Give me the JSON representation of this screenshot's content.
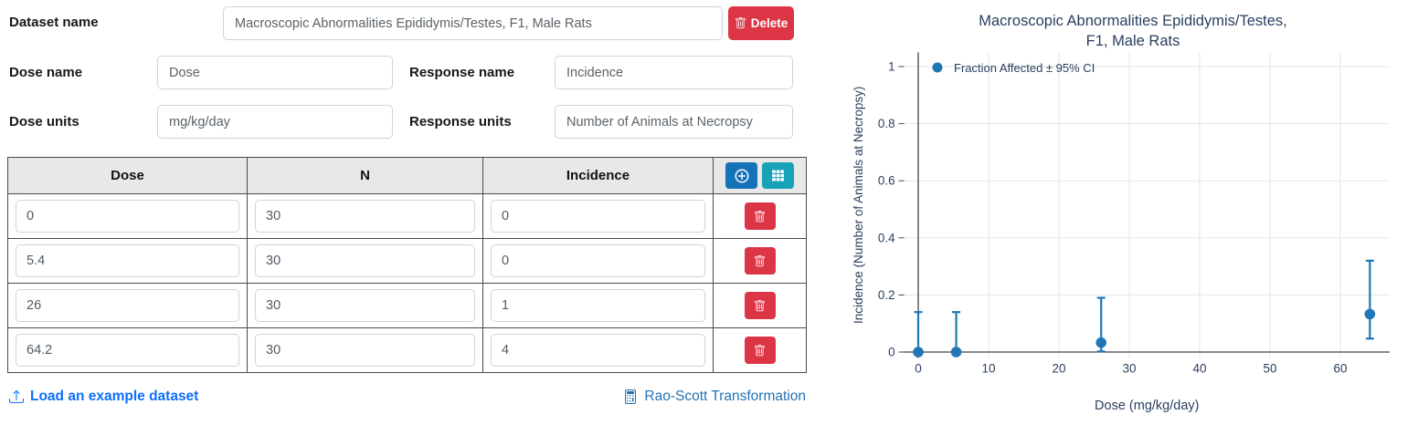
{
  "form": {
    "dataset_name": {
      "label": "Dataset name",
      "value": "Macroscopic Abnormalities Epididymis/Testes, F1, Male Rats"
    },
    "delete_button": "Delete",
    "dose_name": {
      "label": "Dose name",
      "value": "Dose"
    },
    "response_name": {
      "label": "Response name",
      "value": "Incidence"
    },
    "dose_units": {
      "label": "Dose units",
      "value": "mg/kg/day"
    },
    "response_units": {
      "label": "Response units",
      "value": "Number of Animals at Necropsy"
    }
  },
  "table": {
    "headers": [
      "Dose",
      "N",
      "Incidence"
    ],
    "rows": [
      {
        "dose": "0",
        "n": "30",
        "incidence": "0"
      },
      {
        "dose": "5.4",
        "n": "30",
        "incidence": "0"
      },
      {
        "dose": "26",
        "n": "30",
        "incidence": "1"
      },
      {
        "dose": "64.2",
        "n": "30",
        "incidence": "4"
      }
    ]
  },
  "footer": {
    "load_example": "Load an example dataset",
    "rao_scott": "Rao-Scott Transformation"
  },
  "icons": {
    "delete": "trash-icon",
    "add_row": "plus-circle-icon",
    "bulk_grid": "table-grid-icon",
    "load_example": "upload-icon",
    "rao_scott": "calculator-icon"
  },
  "colors": {
    "delete_red": "#dc3545",
    "add_blue": "#1572b6",
    "grid_teal": "#17a2b8",
    "load_link_blue": "#0d6efd",
    "rao_link_blue": "#2272b4",
    "marker_blue": "#1f77b4",
    "grid_line": "#e5e5e5",
    "zero_line": "#444444",
    "chart_text": "#2a3f5f"
  },
  "chart_data": {
    "type": "scatter",
    "title_lines": [
      "Macroscopic Abnormalities Epididymis/Testes,",
      "F1, Male Rats"
    ],
    "xlabel": "Dose (mg/kg/day)",
    "ylabel": "Incidence (Number of Animals at Necropsy)",
    "legend": "Fraction Affected ± 95% CI",
    "legend_position": "top-left",
    "grid": true,
    "xlim": [
      -2,
      67
    ],
    "ylim": [
      -0.02,
      1.05
    ],
    "xticks": [
      0,
      10,
      20,
      30,
      40,
      50,
      60
    ],
    "yticks": [
      0,
      0.2,
      0.4,
      0.6,
      0.8,
      1
    ],
    "marker_color": "#1f77b4",
    "points": [
      {
        "x": 0,
        "y": 0,
        "ci_lower": 0,
        "ci_upper": 0.14
      },
      {
        "x": 5.4,
        "y": 0,
        "ci_lower": 0,
        "ci_upper": 0.14
      },
      {
        "x": 26,
        "y": 0.033,
        "ci_lower": 0.002,
        "ci_upper": 0.19
      },
      {
        "x": 64.2,
        "y": 0.133,
        "ci_lower": 0.047,
        "ci_upper": 0.32
      }
    ]
  }
}
